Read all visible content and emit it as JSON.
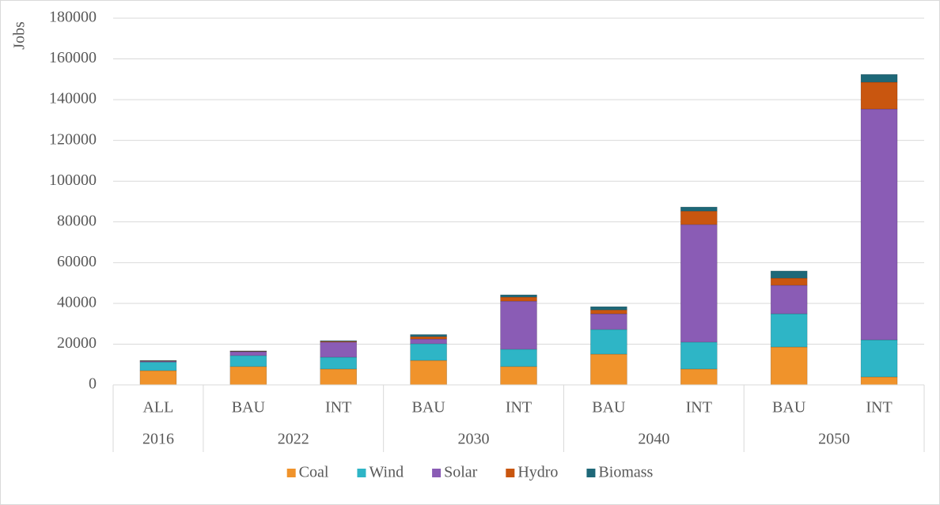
{
  "chart_data": {
    "type": "stacked_bar",
    "y_label": "Jobs",
    "groups": [
      {
        "name": "2016",
        "categories": [
          "ALL"
        ]
      },
      {
        "name": "2022",
        "categories": [
          "BAU",
          "INT"
        ]
      },
      {
        "name": "2030",
        "categories": [
          "BAU",
          "INT"
        ]
      },
      {
        "name": "2040",
        "categories": [
          "BAU",
          "INT"
        ]
      },
      {
        "name": "2050",
        "categories": [
          "BAU",
          "INT"
        ]
      }
    ],
    "series": [
      {
        "name": "Coal",
        "color": "#f0932b",
        "values": [
          7000,
          9000,
          7800,
          12000,
          9000,
          15100,
          7800,
          18600,
          3900
        ]
      },
      {
        "name": "Wind",
        "color": "#2eb5c6",
        "values": [
          4200,
          5400,
          5800,
          8200,
          8500,
          12100,
          13200,
          16300,
          18200
        ]
      },
      {
        "name": "Solar",
        "color": "#8a5cb5",
        "values": [
          400,
          1900,
          7400,
          2300,
          23600,
          7700,
          57700,
          14000,
          113300
        ]
      },
      {
        "name": "Hydro",
        "color": "#c9560f",
        "values": [
          200,
          200,
          400,
          1200,
          2000,
          1900,
          6600,
          3500,
          13200
        ]
      },
      {
        "name": "Biomass",
        "color": "#1e6878",
        "values": [
          200,
          200,
          300,
          1000,
          1100,
          1600,
          2000,
          3500,
          3800
        ]
      }
    ],
    "ylim": [
      0,
      180000
    ],
    "yticks": [
      0,
      20000,
      40000,
      60000,
      80000,
      100000,
      120000,
      140000,
      160000,
      180000
    ],
    "grid": true,
    "legend": "bottom"
  }
}
